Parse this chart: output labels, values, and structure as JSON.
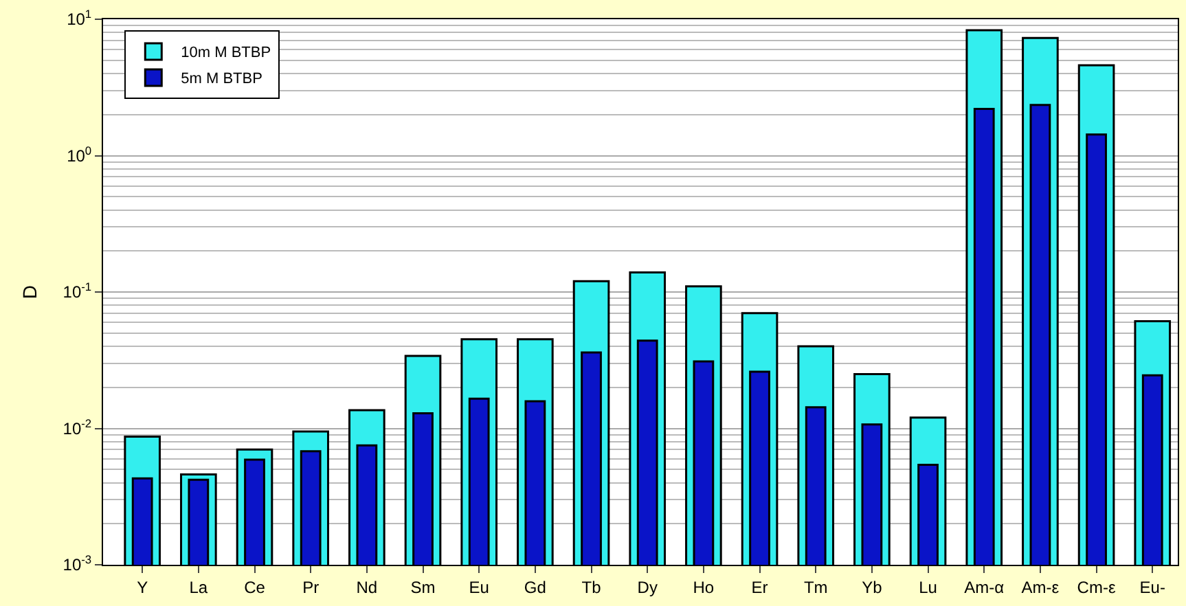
{
  "chart_data": {
    "type": "bar",
    "ylabel": "D",
    "log": "y",
    "categories": [
      "Y",
      "La",
      "Ce",
      "Pr",
      "Nd",
      "Sm",
      "Eu",
      "Gd",
      "Tb",
      "Dy",
      "Ho",
      "Er",
      "Tm",
      "Yb",
      "Lu",
      "Am-α",
      "Am-ε",
      "Cm-ε",
      "Eu-"
    ],
    "series": [
      {
        "name": "10m M BTBP",
        "color": "#33eeee",
        "values": [
          0.0087,
          0.0046,
          0.007,
          0.0095,
          0.0136,
          0.034,
          0.045,
          0.045,
          0.12,
          0.139,
          0.11,
          0.07,
          0.04,
          0.025,
          0.012,
          8.3,
          7.3,
          4.6,
          0.061
        ]
      },
      {
        "name": "5m M BTBP",
        "color": "#0a14c8",
        "values": [
          0.0043,
          0.0042,
          0.0059,
          0.0068,
          0.0075,
          0.0129,
          0.0165,
          0.0158,
          0.036,
          0.044,
          0.031,
          0.026,
          0.0143,
          0.0107,
          0.0054,
          2.2,
          2.35,
          1.43,
          0.0245
        ]
      }
    ],
    "ylim": [
      0.001,
      10
    ],
    "yticks": [
      {
        "value": 0.001,
        "label": "10$^{-3}$"
      },
      {
        "value": 0.01,
        "label": "10$^{-2}$"
      },
      {
        "value": 0.1,
        "label": "10$^{-1}$"
      },
      {
        "value": 1,
        "label": "10$^{0}$"
      },
      {
        "value": 10,
        "label": "10$^{1}$"
      }
    ],
    "grid": "y",
    "legend": "top left"
  }
}
